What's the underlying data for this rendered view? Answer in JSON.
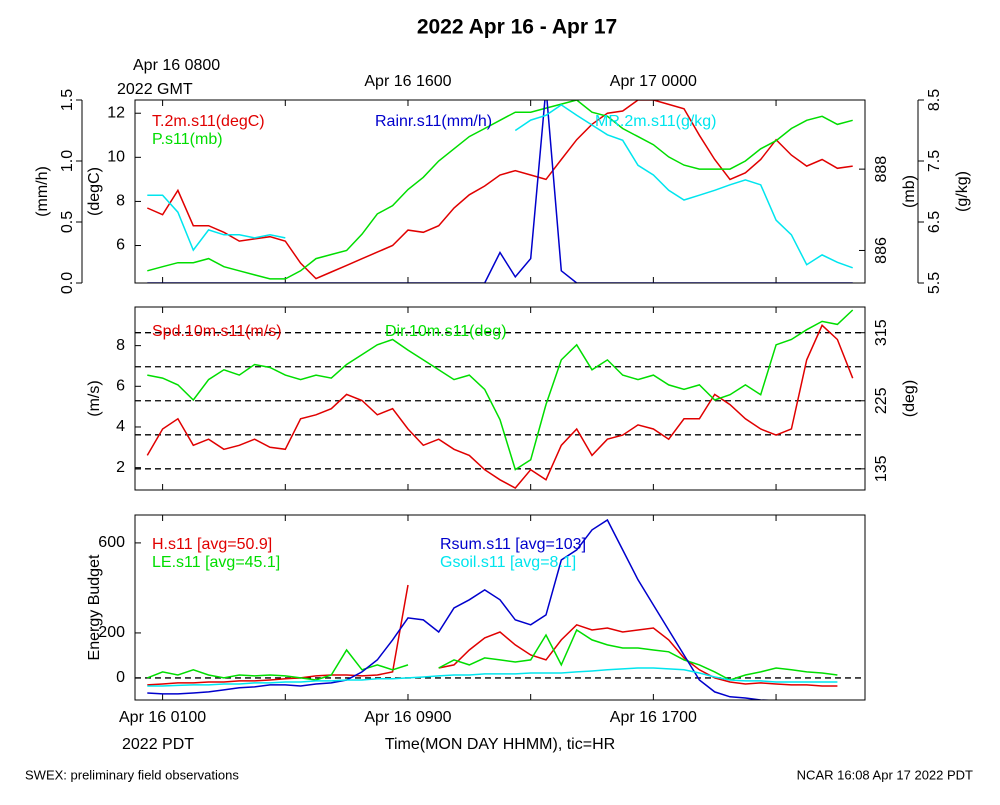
{
  "chart_data": {
    "type": "line",
    "title": "2022 Apr 16 - Apr 17",
    "xlabel": "Time(MON DAY HHMM), tic=HR",
    "xlim": [
      0.1,
      23.9
    ],
    "xticks": [
      1,
      5,
      9,
      13,
      17,
      21
    ],
    "xtick_labels_bottom": [
      {
        "value": 1,
        "label": "Apr 16 0100"
      },
      {
        "value": 9,
        "label": "Apr 16 0900"
      },
      {
        "value": 17,
        "label": "Apr 16 1700"
      }
    ],
    "xnote_bottom": "2022 PDT",
    "xtick_labels_top": [
      {
        "value": 1,
        "label": "Apr 16 0800"
      },
      {
        "value": 9,
        "label": "Apr 16 1600"
      },
      {
        "value": 17,
        "label": "Apr 17 0000"
      }
    ],
    "xnote_top": "2022 GMT",
    "x": [
      0.5,
      1,
      1.5,
      2,
      2.5,
      3,
      3.5,
      4,
      4.5,
      5,
      5.5,
      6,
      6.5,
      7,
      7.5,
      8,
      8.5,
      9,
      9.5,
      10,
      10.5,
      11,
      11.5,
      12,
      12.5,
      13,
      13.5,
      14,
      14.5,
      15,
      15.5,
      16,
      16.5,
      17,
      17.5,
      18,
      18.5,
      19,
      19.5,
      20,
      20.5,
      21,
      21.5,
      22,
      22.5,
      23,
      23.5
    ],
    "panels": [
      {
        "axes": [
          {
            "label": "(mm/h)",
            "side": "left",
            "ylim": [
              0,
              1.5
            ],
            "yticks": [
              {
                "value": 0,
                "label": "0.0"
              },
              0.5,
              {
                "value": 1,
                "label": "1.0"
              },
              1.5
            ]
          },
          {
            "label": "(degC)",
            "side": "left",
            "ylim": [
              4.3,
              12.6
            ],
            "yticks": [
              6,
              8,
              10,
              12
            ]
          },
          {
            "label": "(mb)",
            "side": "right",
            "ylim": [
              885.2,
              889.7
            ],
            "yticks": [
              886,
              888
            ]
          },
          {
            "label": "(g/kg)",
            "side": "right",
            "ylim": [
              5.5,
              8.5
            ],
            "yticks": [
              5.5,
              6.5,
              7.5,
              8.5
            ]
          }
        ],
        "series": [
          {
            "name": "T.2m.s11(degC)",
            "color": "#e00000",
            "axis": 1,
            "values": [
              7.7,
              7.4,
              8.5,
              6.9,
              6.9,
              6.6,
              6.2,
              6.3,
              6.4,
              6.2,
              5.2,
              4.5,
              4.8,
              5.1,
              5.4,
              5.7,
              6.0,
              6.7,
              6.6,
              6.9,
              7.7,
              8.3,
              8.7,
              9.2,
              9.4,
              9.2,
              9.0,
              9.9,
              10.8,
              11.5,
              12.0,
              12.1,
              12.6,
              12.6,
              12.4,
              12.2,
              11.0,
              9.9,
              9.0,
              9.3,
              9.9,
              10.8,
              10.1,
              9.6,
              9.9,
              9.5,
              9.6
            ]
          },
          {
            "name": "P.s11(mb)",
            "color": "#00dd00",
            "axis": 2,
            "values": [
              885.5,
              885.6,
              885.7,
              885.7,
              885.8,
              885.6,
              885.5,
              885.4,
              885.3,
              885.3,
              885.5,
              885.8,
              885.9,
              886.0,
              886.4,
              886.9,
              887.1,
              887.5,
              887.8,
              888.2,
              888.5,
              888.8,
              889.0,
              889.2,
              889.4,
              889.4,
              889.5,
              889.6,
              889.7,
              889.4,
              889.3,
              889.0,
              888.8,
              888.6,
              888.3,
              888.1,
              888.0,
              888.0,
              888.0,
              888.2,
              888.5,
              888.7,
              889.0,
              889.2,
              889.3,
              889.1,
              889.2
            ]
          },
          {
            "name": "Rainr.s11(mm/h)",
            "color": "#0000cc",
            "axis": 0,
            "values": [
              0,
              0,
              0,
              0,
              0,
              0,
              0,
              0,
              0,
              0,
              0,
              0,
              0,
              0,
              0,
              0,
              0,
              0,
              0,
              0,
              0,
              0,
              0,
              0.25,
              0.05,
              0.2,
              1.6,
              0.1,
              0,
              0,
              0,
              0,
              0,
              0,
              0,
              0,
              0,
              0,
              0,
              0,
              0,
              0,
              0,
              0,
              0,
              0,
              0
            ]
          },
          {
            "name": "MR.2m.s11(g/kg)",
            "color": "#00e5ee",
            "axis": 3,
            "values": [
              6.94,
              6.94,
              6.66,
              6.04,
              6.37,
              6.29,
              6.29,
              6.24,
              6.29,
              6.24,
              null,
              null,
              null,
              null,
              null,
              null,
              null,
              null,
              null,
              null,
              null,
              null,
              null,
              null,
              8.0,
              8.17,
              8.25,
              8.42,
              8.25,
              8.09,
              7.93,
              7.84,
              7.43,
              7.27,
              7.02,
              6.86,
              6.94,
              7.02,
              7.11,
              7.19,
              7.11,
              6.53,
              6.29,
              5.8,
              5.96,
              5.84,
              5.75
            ]
          }
        ]
      },
      {
        "axes": [
          {
            "label": "(m/s)",
            "side": "left",
            "ylim": [
              0.9,
              9.9
            ],
            "yticks": [
              2,
              4,
              6,
              8
            ]
          },
          {
            "label": "(deg)",
            "side": "right",
            "ylim": [
              107,
              349
            ],
            "yticks": [
              135,
              225,
              315
            ],
            "gridlines": [
              135,
              180,
              225,
              270,
              315
            ]
          }
        ],
        "series": [
          {
            "name": "Spd.10m.s11(m/s)",
            "color": "#e00000",
            "axis": 0,
            "values": [
              2.6,
              3.9,
              4.4,
              3.1,
              3.4,
              2.9,
              3.1,
              3.4,
              3.0,
              2.9,
              4.4,
              4.6,
              4.9,
              5.6,
              5.3,
              4.6,
              4.9,
              3.9,
              3.1,
              3.4,
              2.9,
              2.6,
              1.9,
              1.4,
              1.0,
              1.9,
              1.4,
              3.1,
              3.9,
              2.6,
              3.4,
              3.6,
              4.1,
              3.9,
              3.4,
              4.4,
              4.4,
              5.6,
              5.1,
              4.4,
              3.9,
              3.6,
              3.9,
              7.3,
              9.0,
              8.3,
              6.4
            ]
          },
          {
            "name": "Dir.10m.s11(deg)",
            "color": "#00dd00",
            "axis": 1,
            "values": [
              259,
              255,
              246,
              226,
              253,
              266,
              259,
              273,
              269,
              259,
              253,
              259,
              255,
              273,
              286,
              299,
              306,
              292,
              279,
              266,
              253,
              259,
              240,
              200,
              134,
              147,
              220,
              279,
              299,
              266,
              279,
              259,
              253,
              259,
              246,
              240,
              246,
              226,
              233,
              246,
              233,
              299,
              306,
              319,
              330,
              326,
              345
            ]
          }
        ]
      },
      {
        "axes": [
          {
            "label": "Energy Budget",
            "side": "left",
            "ylim": [
              -98,
              724
            ],
            "yticks": [
              0,
              200,
              600
            ],
            "gridlines": [
              0
            ]
          }
        ],
        "series": [
          {
            "name": "H.s11 [avg=50.9]",
            "color": "#e00000",
            "axis": 0,
            "values": [
              -31,
              -27,
              -22,
              -22,
              -18,
              -18,
              -13,
              -13,
              -9,
              -4,
              0,
              9,
              13,
              13,
              9,
              13,
              27,
              413,
              null,
              44,
              58,
              124,
              178,
              204,
              147,
              102,
              80,
              169,
              236,
              213,
              222,
              204,
              213,
              222,
              169,
              89,
              36,
              0,
              -18,
              -27,
              -22,
              -27,
              -31,
              -31,
              -36,
              -36,
              null
            ]
          },
          {
            "name": "LE.s11 [avg=45.1]",
            "color": "#00dd00",
            "axis": 0,
            "values": [
              0,
              27,
              13,
              36,
              13,
              0,
              13,
              9,
              13,
              9,
              0,
              -9,
              13,
              124,
              36,
              58,
              36,
              58,
              null,
              44,
              80,
              58,
              89,
              80,
              71,
              80,
              191,
              58,
              213,
              169,
              147,
              133,
              133,
              124,
              116,
              80,
              58,
              27,
              -9,
              13,
              27,
              44,
              36,
              27,
              22,
              13,
              null
            ]
          },
          {
            "name": "Rsum.s11 [avg=103]",
            "color": "#0000cc",
            "axis": 0,
            "values": [
              -67,
              -71,
              -71,
              -67,
              -62,
              -53,
              -44,
              -40,
              -31,
              -31,
              -36,
              -27,
              -22,
              -9,
              27,
              80,
              169,
              267,
              258,
              204,
              311,
              347,
              391,
              347,
              258,
              236,
              280,
              524,
              569,
              658,
              702,
              569,
              436,
              324,
              213,
              102,
              -9,
              -62,
              -84,
              -89,
              -98,
              -100,
              -100,
              -100,
              -100,
              -100,
              null
            ]
          },
          {
            "name": "Gsoil.s11 [avg=8.1]",
            "color": "#00e5ee",
            "axis": 0,
            "values": [
              -36,
              -36,
              -33,
              -31,
              -31,
              -27,
              -27,
              -22,
              -22,
              -18,
              -18,
              -13,
              -13,
              -9,
              -9,
              -4,
              -4,
              0,
              4,
              9,
              13,
              13,
              18,
              18,
              18,
              22,
              22,
              22,
              27,
              31,
              36,
              40,
              44,
              44,
              40,
              36,
              22,
              4,
              -9,
              -13,
              -13,
              -18,
              -18,
              -18,
              -18,
              -18,
              null
            ]
          }
        ]
      }
    ]
  },
  "footer_left": "SWEX: preliminary field observations",
  "footer_right": "NCAR 16:08 Apr 17 2022 PDT"
}
